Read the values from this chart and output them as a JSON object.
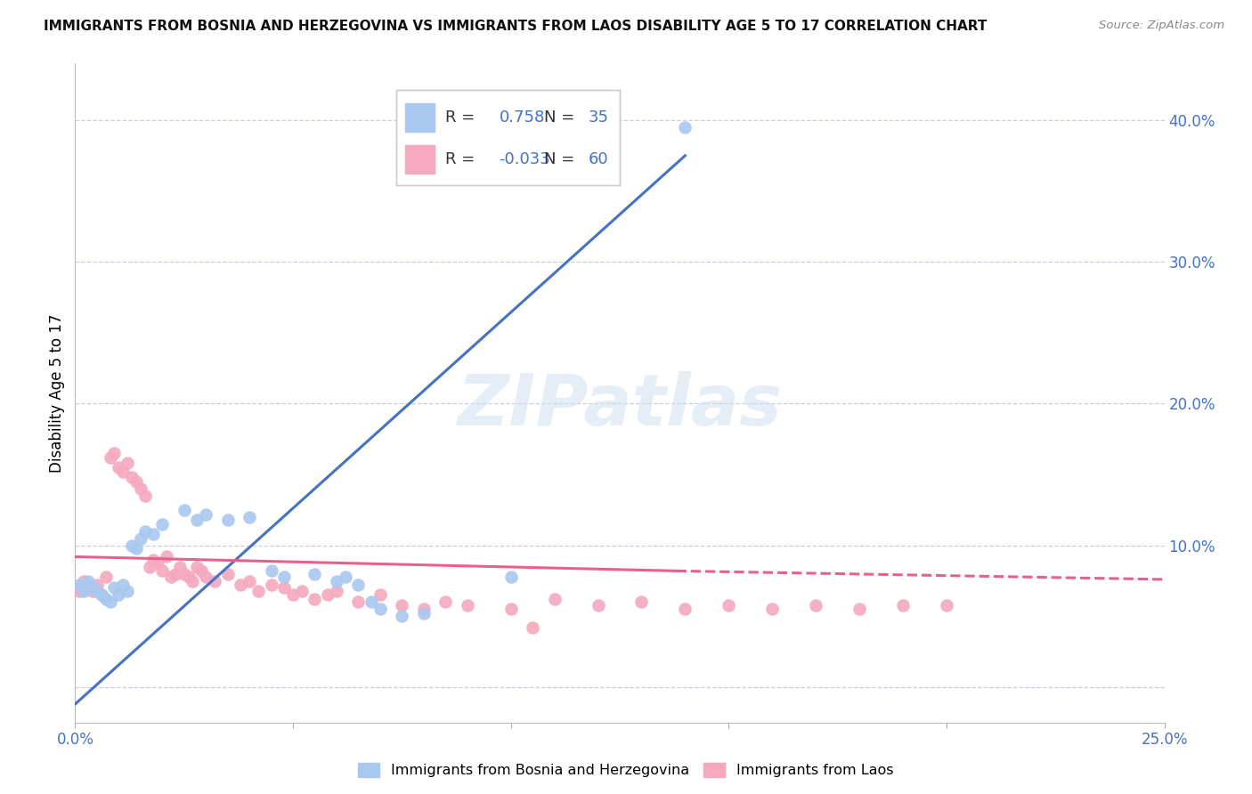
{
  "title": "IMMIGRANTS FROM BOSNIA AND HERZEGOVINA VS IMMIGRANTS FROM LAOS DISABILITY AGE 5 TO 17 CORRELATION CHART",
  "source": "Source: ZipAtlas.com",
  "ylabel": "Disability Age 5 to 17",
  "xlim": [
    0,
    0.25
  ],
  "ylim": [
    -0.025,
    0.44
  ],
  "yticks": [
    0.0,
    0.1,
    0.2,
    0.3,
    0.4
  ],
  "ytick_labels": [
    "",
    "10.0%",
    "20.0%",
    "30.0%",
    "40.0%"
  ],
  "xticks": [
    0.0,
    0.05,
    0.1,
    0.15,
    0.2,
    0.25
  ],
  "xtick_labels": [
    "0.0%",
    "",
    "",
    "",
    "",
    "25.0%"
  ],
  "bosnia_R": 0.758,
  "bosnia_N": 35,
  "laos_R": -0.033,
  "laos_N": 60,
  "bosnia_color": "#a8c8f0",
  "laos_color": "#f5a8be",
  "bosnia_line_color": "#4472c4",
  "laos_line_color": "#e8608a",
  "bosnia_scatter": [
    [
      0.001,
      0.072
    ],
    [
      0.002,
      0.068
    ],
    [
      0.003,
      0.075
    ],
    [
      0.004,
      0.07
    ],
    [
      0.005,
      0.068
    ],
    [
      0.006,
      0.065
    ],
    [
      0.007,
      0.062
    ],
    [
      0.008,
      0.06
    ],
    [
      0.009,
      0.07
    ],
    [
      0.01,
      0.065
    ],
    [
      0.011,
      0.072
    ],
    [
      0.012,
      0.068
    ],
    [
      0.013,
      0.1
    ],
    [
      0.014,
      0.098
    ],
    [
      0.015,
      0.105
    ],
    [
      0.016,
      0.11
    ],
    [
      0.018,
      0.108
    ],
    [
      0.02,
      0.115
    ],
    [
      0.025,
      0.125
    ],
    [
      0.028,
      0.118
    ],
    [
      0.03,
      0.122
    ],
    [
      0.035,
      0.118
    ],
    [
      0.04,
      0.12
    ],
    [
      0.045,
      0.082
    ],
    [
      0.048,
      0.078
    ],
    [
      0.055,
      0.08
    ],
    [
      0.06,
      0.075
    ],
    [
      0.062,
      0.078
    ],
    [
      0.065,
      0.072
    ],
    [
      0.068,
      0.06
    ],
    [
      0.07,
      0.055
    ],
    [
      0.075,
      0.05
    ],
    [
      0.08,
      0.052
    ],
    [
      0.1,
      0.078
    ],
    [
      0.14,
      0.395
    ]
  ],
  "laos_scatter": [
    [
      0.001,
      0.068
    ],
    [
      0.002,
      0.075
    ],
    [
      0.003,
      0.07
    ],
    [
      0.004,
      0.068
    ],
    [
      0.005,
      0.072
    ],
    [
      0.006,
      0.065
    ],
    [
      0.007,
      0.078
    ],
    [
      0.008,
      0.162
    ],
    [
      0.009,
      0.165
    ],
    [
      0.01,
      0.155
    ],
    [
      0.011,
      0.152
    ],
    [
      0.012,
      0.158
    ],
    [
      0.013,
      0.148
    ],
    [
      0.014,
      0.145
    ],
    [
      0.015,
      0.14
    ],
    [
      0.016,
      0.135
    ],
    [
      0.017,
      0.085
    ],
    [
      0.018,
      0.09
    ],
    [
      0.019,
      0.088
    ],
    [
      0.02,
      0.082
    ],
    [
      0.021,
      0.092
    ],
    [
      0.022,
      0.078
    ],
    [
      0.023,
      0.08
    ],
    [
      0.024,
      0.085
    ],
    [
      0.025,
      0.08
    ],
    [
      0.026,
      0.078
    ],
    [
      0.027,
      0.075
    ],
    [
      0.028,
      0.085
    ],
    [
      0.029,
      0.082
    ],
    [
      0.03,
      0.078
    ],
    [
      0.032,
      0.075
    ],
    [
      0.035,
      0.08
    ],
    [
      0.038,
      0.072
    ],
    [
      0.04,
      0.075
    ],
    [
      0.042,
      0.068
    ],
    [
      0.045,
      0.072
    ],
    [
      0.048,
      0.07
    ],
    [
      0.05,
      0.065
    ],
    [
      0.052,
      0.068
    ],
    [
      0.055,
      0.062
    ],
    [
      0.058,
      0.065
    ],
    [
      0.06,
      0.068
    ],
    [
      0.065,
      0.06
    ],
    [
      0.07,
      0.065
    ],
    [
      0.075,
      0.058
    ],
    [
      0.08,
      0.055
    ],
    [
      0.085,
      0.06
    ],
    [
      0.09,
      0.058
    ],
    [
      0.1,
      0.055
    ],
    [
      0.11,
      0.062
    ],
    [
      0.12,
      0.058
    ],
    [
      0.13,
      0.06
    ],
    [
      0.14,
      0.055
    ],
    [
      0.15,
      0.058
    ],
    [
      0.16,
      0.055
    ],
    [
      0.17,
      0.058
    ],
    [
      0.18,
      0.055
    ],
    [
      0.2,
      0.058
    ],
    [
      0.105,
      0.042
    ],
    [
      0.19,
      0.058
    ]
  ],
  "bosnia_line": [
    [
      0.0,
      -0.012
    ],
    [
      0.14,
      0.375
    ]
  ],
  "laos_line_solid": [
    [
      0.0,
      0.092
    ],
    [
      0.138,
      0.082
    ]
  ],
  "laos_line_dash": [
    [
      0.138,
      0.082
    ],
    [
      0.25,
      0.076
    ]
  ],
  "watermark": "ZIPatlas",
  "background_color": "#ffffff",
  "grid_color": "#c8d0e0",
  "axis_color": "#4472c4"
}
